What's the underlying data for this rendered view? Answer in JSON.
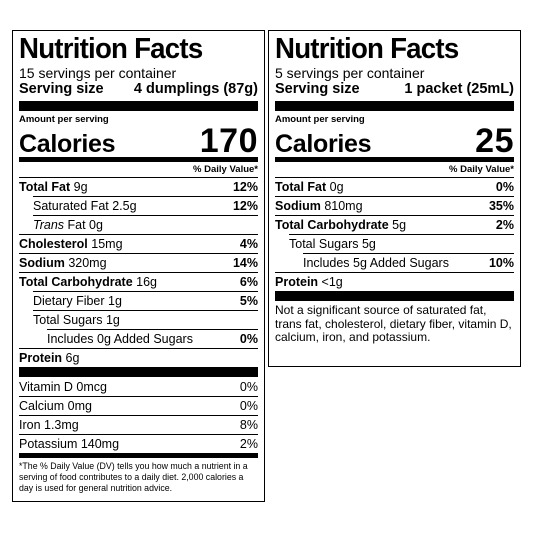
{
  "left": {
    "title": "Nutrition Facts",
    "servings": "15 servings per container",
    "serving_size_label": "Serving size",
    "serving_size_value": "4 dumplings (87g)",
    "amount_per_serving": "Amount per serving",
    "calories_label": "Calories",
    "calories_value": "170",
    "dv_header": "% Daily Value*",
    "rows": {
      "total_fat": {
        "name": "Total Fat",
        "amount": "9g",
        "pct": "12%"
      },
      "sat_fat": {
        "name": "Saturated Fat 2.5g",
        "pct": "12%"
      },
      "trans_fat": {
        "name_italic": "Trans",
        "name_rest": " Fat 0g"
      },
      "cholesterol": {
        "name": "Cholesterol",
        "amount": "15mg",
        "pct": "4%"
      },
      "sodium": {
        "name": "Sodium",
        "amount": "320mg",
        "pct": "14%"
      },
      "total_carb": {
        "name": "Total Carbohydrate",
        "amount": "16g",
        "pct": "6%"
      },
      "fiber": {
        "name": "Dietary Fiber 1g",
        "pct": "5%"
      },
      "total_sugars": {
        "name": "Total Sugars 1g"
      },
      "added_sugars": {
        "name": "Includes 0g Added Sugars",
        "pct": "0%"
      },
      "protein": {
        "name": "Protein",
        "amount": "6g"
      },
      "vitamin_d": {
        "name": "Vitamin D 0mcg",
        "pct": "0%"
      },
      "calcium": {
        "name": "Calcium 0mg",
        "pct": "0%"
      },
      "iron": {
        "name": "Iron 1.3mg",
        "pct": "8%"
      },
      "potassium": {
        "name": "Potassium 140mg",
        "pct": "2%"
      }
    },
    "footnote": "*The % Daily Value (DV) tells you how much a nutrient in a serving of food contributes to a daily diet. 2,000 calories a day is used for general nutrition advice."
  },
  "right": {
    "title": "Nutrition Facts",
    "servings": "5 servings per container",
    "serving_size_label": "Serving size",
    "serving_size_value": "1 packet (25mL)",
    "amount_per_serving": "Amount per serving",
    "calories_label": "Calories",
    "calories_value": "25",
    "dv_header": "% Daily Value*",
    "rows": {
      "total_fat": {
        "name": "Total Fat",
        "amount": "0g",
        "pct": "0%"
      },
      "sodium": {
        "name": "Sodium",
        "amount": "810mg",
        "pct": "35%"
      },
      "total_carb": {
        "name": "Total Carbohydrate",
        "amount": "5g",
        "pct": "2%"
      },
      "total_sugars": {
        "name": "Total Sugars 5g"
      },
      "added_sugars": {
        "name": "Includes 5g Added Sugars",
        "pct": "10%"
      },
      "protein": {
        "name": "Protein",
        "amount": "<1g"
      }
    },
    "note": "Not a significant source of saturated fat, trans fat, cholesterol, dietary fiber, vitamin D, calcium, iron, and potassium."
  }
}
